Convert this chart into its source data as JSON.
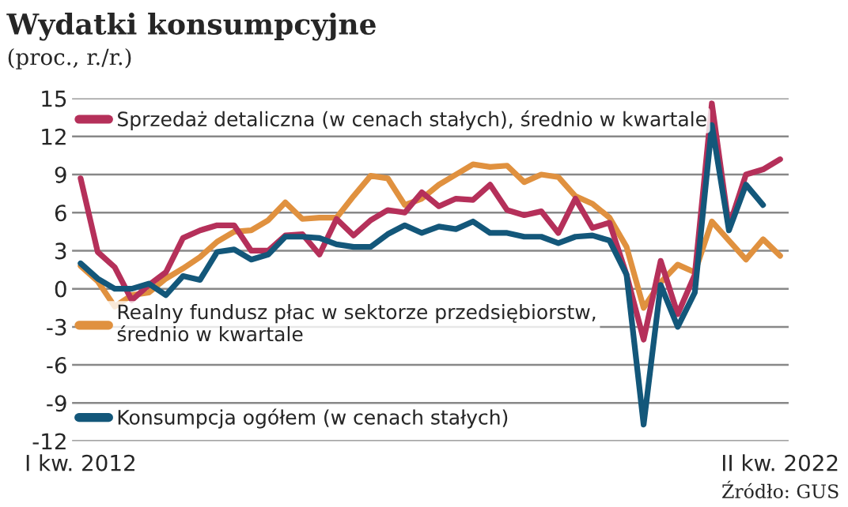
{
  "chart_data": {
    "type": "line",
    "title": "Wydatki konsumpcyjne",
    "subtitle": "(proc., r./r.)",
    "categories": [
      "I kw. 2012",
      null,
      null,
      null,
      null,
      null,
      null,
      null,
      null,
      null,
      null,
      null,
      null,
      null,
      null,
      null,
      null,
      null,
      null,
      null,
      null,
      null,
      null,
      null,
      null,
      null,
      null,
      null,
      null,
      null,
      null,
      null,
      null,
      null,
      null,
      null,
      null,
      null,
      null,
      null,
      null,
      "II kw. 2022"
    ],
    "series": [
      {
        "name": "Realny fundusz płac w sektorze przedsiębiorstw,\nśrednio w kwartale",
        "color": "#e0913f",
        "values": [
          1.8,
          0.6,
          -1.4,
          -0.5,
          -0.3,
          0.8,
          1.6,
          2.5,
          3.7,
          4.5,
          4.6,
          5.4,
          6.8,
          5.5,
          5.6,
          5.6,
          7.3,
          8.9,
          8.7,
          6.6,
          7.1,
          8.2,
          9.0,
          9.8,
          9.6,
          9.7,
          8.4,
          9.0,
          8.8,
          7.3,
          6.7,
          5.6,
          3.3,
          -1.5,
          0.5,
          1.9,
          1.3,
          5.3,
          3.8,
          2.3,
          3.9,
          2.6
        ]
      },
      {
        "name": "Sprzedaż detaliczna (w cenach stałych), średnio w kwartale",
        "color": "#b5305a",
        "values": [
          8.7,
          2.9,
          1.7,
          -0.9,
          0.3,
          1.3,
          4.0,
          4.6,
          5.0,
          5.0,
          3.0,
          3.0,
          4.2,
          4.3,
          2.7,
          5.5,
          4.2,
          5.4,
          6.2,
          6.0,
          7.6,
          6.5,
          7.1,
          7.0,
          8.2,
          6.2,
          5.8,
          6.1,
          4.4,
          7.1,
          4.8,
          5.2,
          1.1,
          -4.0,
          2.2,
          -2.0,
          1.1,
          14.6,
          4.9,
          9.0,
          9.4,
          10.2
        ]
      },
      {
        "name": "Konsumpcja ogółem (w cenach stałych)",
        "color": "#13577a",
        "values": [
          2.0,
          0.8,
          0.0,
          0.0,
          0.4,
          -0.5,
          1.0,
          0.7,
          2.9,
          3.1,
          2.3,
          2.7,
          4.1,
          4.1,
          4.0,
          3.5,
          3.3,
          3.3,
          4.3,
          5.0,
          4.4,
          4.9,
          4.7,
          5.3,
          4.4,
          4.4,
          4.1,
          4.1,
          3.6,
          4.1,
          4.2,
          3.8,
          1.1,
          -10.7,
          0.3,
          -3.0,
          -0.3,
          12.9,
          4.6,
          8.2,
          6.6,
          null
        ]
      }
    ],
    "ylim": [
      -12,
      15
    ],
    "yticks": [
      -12,
      -9,
      -6,
      -3,
      0,
      3,
      6,
      9,
      12,
      15
    ],
    "grid": "y",
    "legend": "left",
    "line_style": "solid",
    "marker": "none",
    "annotations": [
      "Źródło: GUS"
    ]
  }
}
